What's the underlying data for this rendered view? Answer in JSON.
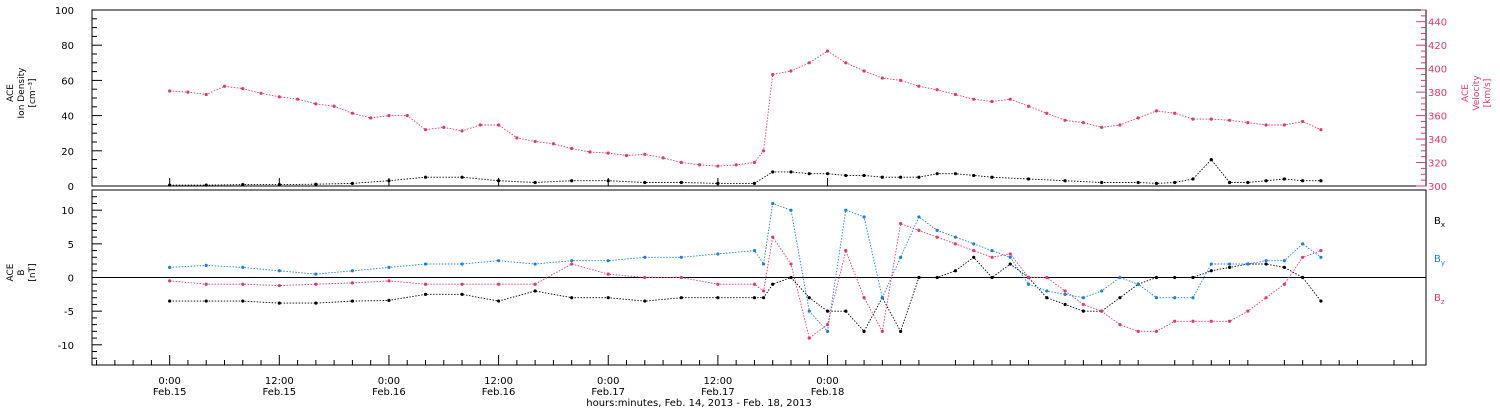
{
  "chart_data": [
    {
      "type": "scatter",
      "panel": "top",
      "left_axis": {
        "label_lines": [
          "ACE",
          "Ion Density",
          "[cm⁻³]"
        ],
        "ylim": [
          0,
          100
        ],
        "ticks": [
          0,
          20,
          40,
          60,
          80,
          100
        ]
      },
      "right_axis": {
        "label_lines": [
          "ACE",
          "Velocity",
          "[km/s]"
        ],
        "ylim": [
          300,
          450
        ],
        "ticks": [
          300,
          320,
          340,
          360,
          380,
          400,
          420,
          440
        ],
        "color": "#e8356a"
      },
      "series": [
        {
          "axis": "left",
          "color": "#000000",
          "x": [
            0,
            4,
            8,
            12,
            16,
            20,
            24,
            28,
            32,
            36,
            40,
            44,
            48,
            52,
            56,
            60,
            64,
            66,
            68,
            70,
            72,
            74,
            76,
            78,
            80,
            82,
            84,
            86,
            88,
            90,
            94,
            98,
            102,
            106,
            108,
            110,
            112,
            114,
            116,
            118,
            120,
            122,
            124,
            126
          ],
          "y": [
            0.5,
            0.5,
            0.8,
            0.8,
            1,
            1.5,
            3,
            5,
            5,
            3,
            2,
            3,
            3,
            2,
            2,
            1.5,
            1.5,
            8,
            8,
            7,
            7,
            6,
            6,
            5,
            5,
            5,
            7,
            7,
            6,
            5,
            4,
            3,
            2,
            2,
            1.5,
            2,
            4,
            15,
            2,
            2,
            3,
            4,
            3,
            3
          ]
        },
        {
          "axis": "right",
          "color": "#e8356a",
          "x": [
            0,
            2,
            4,
            6,
            8,
            10,
            12,
            14,
            16,
            18,
            20,
            22,
            24,
            26,
            28,
            30,
            32,
            34,
            36,
            38,
            40,
            42,
            44,
            46,
            48,
            50,
            52,
            54,
            56,
            58,
            60,
            62,
            64,
            65,
            66,
            68,
            70,
            72,
            74,
            76,
            78,
            80,
            82,
            84,
            86,
            88,
            90,
            92,
            94,
            96,
            98,
            100,
            102,
            104,
            106,
            108,
            110,
            112,
            114,
            116,
            118,
            120,
            122,
            124,
            126
          ],
          "y": [
            381,
            380,
            378,
            385,
            383,
            379,
            376,
            374,
            370,
            368,
            362,
            358,
            360,
            360,
            348,
            350,
            347,
            352,
            352,
            341,
            338,
            336,
            332,
            329,
            328,
            326,
            327,
            324,
            320,
            318,
            317,
            318,
            320,
            330,
            395,
            398,
            405,
            415,
            405,
            398,
            392,
            390,
            385,
            382,
            378,
            374,
            372,
            374,
            368,
            362,
            356,
            354,
            350,
            352,
            358,
            364,
            362,
            357,
            357,
            356,
            354,
            352,
            352,
            355,
            348
          ]
        }
      ]
    },
    {
      "type": "scatter",
      "panel": "bottom",
      "left_axis": {
        "label_lines": [
          "ACE",
          "B",
          "[nT]"
        ],
        "ylim": [
          -13,
          13
        ],
        "ticks": [
          -10,
          -5,
          0,
          5,
          10
        ]
      },
      "series": [
        {
          "name": "Bx",
          "color": "#000000",
          "x": [
            0,
            4,
            8,
            12,
            16,
            20,
            24,
            28,
            32,
            36,
            40,
            44,
            48,
            52,
            56,
            60,
            64,
            65,
            66,
            68,
            70,
            72,
            74,
            76,
            78,
            80,
            82,
            84,
            86,
            88,
            90,
            92,
            94,
            96,
            98,
            100,
            102,
            104,
            106,
            108,
            110,
            112,
            114,
            116,
            118,
            120,
            122,
            124,
            126
          ],
          "y": [
            -3.5,
            -3.5,
            -3.5,
            -3.8,
            -3.8,
            -3.5,
            -3.4,
            -2.5,
            -2.5,
            -3.5,
            -2,
            -3,
            -3,
            -3.5,
            -3,
            -3,
            -3,
            -3,
            -1,
            0,
            -3,
            -5,
            -5,
            -8,
            -3,
            -8,
            0,
            0,
            1,
            3,
            0,
            2,
            0,
            -3,
            -4,
            -5,
            -5,
            -3,
            -1,
            0,
            0,
            0,
            1,
            1.5,
            2,
            2,
            1.5,
            0,
            -3.5
          ]
        },
        {
          "name": "By",
          "color": "#1a7fe0",
          "x": [
            0,
            4,
            8,
            12,
            16,
            20,
            24,
            28,
            32,
            36,
            40,
            44,
            48,
            52,
            56,
            60,
            64,
            65,
            66,
            68,
            70,
            72,
            74,
            76,
            78,
            80,
            82,
            84,
            86,
            88,
            90,
            92,
            94,
            96,
            98,
            100,
            102,
            104,
            106,
            108,
            110,
            112,
            114,
            116,
            118,
            120,
            122,
            124,
            126
          ],
          "y": [
            1.5,
            1.8,
            1.5,
            1,
            0.5,
            1,
            1.5,
            2,
            2,
            2.5,
            2,
            2.5,
            2.5,
            3,
            3,
            3.5,
            4,
            2,
            11,
            10,
            -5,
            -8,
            10,
            9,
            -3,
            3,
            9,
            7,
            6,
            5,
            4,
            3,
            -1,
            -2,
            -2.5,
            -3,
            -2,
            0,
            -1,
            -3,
            -3,
            -3,
            2,
            2,
            2,
            2.5,
            2.5,
            5,
            3
          ]
        },
        {
          "name": "Bz",
          "color": "#e8356a",
          "x": [
            0,
            4,
            8,
            12,
            16,
            20,
            24,
            28,
            32,
            36,
            40,
            44,
            48,
            52,
            56,
            60,
            64,
            65,
            66,
            68,
            70,
            72,
            74,
            76,
            78,
            80,
            82,
            84,
            86,
            88,
            90,
            92,
            94,
            96,
            98,
            100,
            102,
            104,
            106,
            108,
            110,
            112,
            114,
            116,
            118,
            120,
            122,
            124,
            126
          ],
          "y": [
            -0.5,
            -1,
            -1,
            -1.2,
            -1,
            -0.8,
            -0.5,
            -1,
            -1,
            -1,
            -1,
            2,
            0.5,
            0,
            0,
            -1,
            -1,
            -2,
            6,
            2,
            -9,
            -7,
            4,
            -3,
            -8,
            8,
            7,
            6,
            5,
            4,
            3,
            3.5,
            0,
            0,
            -2,
            -4,
            -5,
            -7,
            -8,
            -8,
            -6.5,
            -6.5,
            -6.5,
            -6.5,
            -5,
            -3,
            -1,
            3,
            4
          ]
        }
      ]
    }
  ],
  "x_axis": {
    "range": [
      -8.5,
      137.5
    ],
    "ticks": [
      {
        "x": 0,
        "time": "0:00",
        "date": "Feb.15"
      },
      {
        "x": 12,
        "time": "12:00",
        "date": "Feb.15"
      },
      {
        "x": 24,
        "time": "0:00",
        "date": "Feb.16"
      },
      {
        "x": 36,
        "time": "12:00",
        "date": "Feb.16"
      },
      {
        "x": 48,
        "time": "0:00",
        "date": "Feb.17"
      },
      {
        "x": 60,
        "time": "12:00",
        "date": "Feb.17"
      },
      {
        "x": 72,
        "time": "0:00",
        "date": "Feb.18"
      }
    ],
    "title": "hours:minutes, Feb. 14, 2013 - Feb. 18, 2013"
  },
  "legend": [
    {
      "text": "B",
      "sub": "x",
      "color": "#000000"
    },
    {
      "text": "B",
      "sub": "y",
      "color": "#1a7fe0"
    },
    {
      "text": "B",
      "sub": "z",
      "color": "#e8356a"
    }
  ]
}
